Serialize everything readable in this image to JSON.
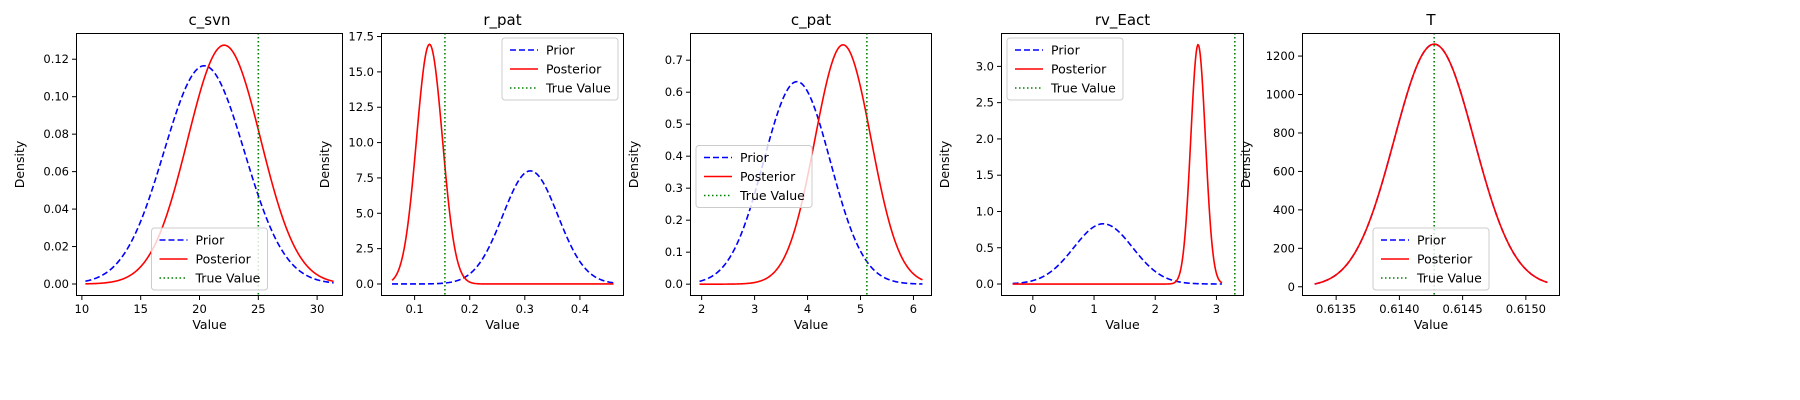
{
  "colors": {
    "prior": "#0000ff",
    "posterior": "#ff0000",
    "true_value": "#008000"
  },
  "chart_data": [
    {
      "type": "line",
      "title": "c_svn",
      "xlabel": "Value",
      "ylabel": "Density",
      "xlim": [
        9.5,
        32.2
      ],
      "ylim": [
        -0.0064,
        0.134
      ],
      "xticks": [
        10,
        15,
        20,
        25,
        30
      ],
      "xtick_labels": [
        "10",
        "15",
        "20",
        "25",
        "30"
      ],
      "yticks": [
        0.0,
        0.02,
        0.04,
        0.06,
        0.08,
        0.1,
        0.12
      ],
      "ytick_labels": [
        "0.00",
        "0.02",
        "0.04",
        "0.06",
        "0.08",
        "0.10",
        "0.12"
      ],
      "legend": "lower-center",
      "x_range": [
        10.3,
        31.4
      ],
      "series": [
        {
          "name": "Prior",
          "style": "dashed",
          "curve": {
            "shape": "gaussian",
            "mean": 20.4,
            "sd": 3.42,
            "peak": 0.1165
          }
        },
        {
          "name": "Posterior",
          "style": "solid",
          "curve": {
            "shape": "gaussian",
            "mean": 22.1,
            "sd": 3.1,
            "peak": 0.1275
          }
        }
      ],
      "true_value": 25.0,
      "true_value_label": "True Value"
    },
    {
      "type": "line",
      "title": "r_pat",
      "xlabel": "Value",
      "ylabel": "Density",
      "xlim": [
        0.039,
        0.48
      ],
      "ylim": [
        -0.85,
        17.75
      ],
      "xticks": [
        0.1,
        0.2,
        0.3,
        0.4
      ],
      "xtick_labels": [
        "0.1",
        "0.2",
        "0.3",
        "0.4"
      ],
      "yticks": [
        0.0,
        2.5,
        5.0,
        7.5,
        10.0,
        12.5,
        15.0,
        17.5
      ],
      "ytick_labels": [
        "0.0",
        "2.5",
        "5.0",
        "7.5",
        "10.0",
        "12.5",
        "15.0",
        "17.5"
      ],
      "legend": "upper-right",
      "x_range": [
        0.059,
        0.461
      ],
      "series": [
        {
          "name": "Prior",
          "style": "dashed",
          "curve": {
            "shape": "gaussian",
            "mean": 0.31,
            "sd": 0.05,
            "peak": 8.0
          }
        },
        {
          "name": "Posterior",
          "style": "solid",
          "curve": {
            "shape": "gaussian",
            "mean": 0.127,
            "sd": 0.0235,
            "peak": 16.95
          }
        }
      ],
      "true_value": 0.155,
      "true_value_label": "True Value"
    },
    {
      "type": "line",
      "title": "c_pat",
      "xlabel": "Value",
      "ylabel": "Density",
      "xlim": [
        1.78,
        6.35
      ],
      "ylim": [
        -0.037,
        0.785
      ],
      "xticks": [
        2,
        3,
        4,
        5,
        6
      ],
      "xtick_labels": [
        "2",
        "3",
        "4",
        "5",
        "6"
      ],
      "yticks": [
        0.0,
        0.1,
        0.2,
        0.3,
        0.4,
        0.5,
        0.6,
        0.7
      ],
      "ytick_labels": [
        "0.0",
        "0.1",
        "0.2",
        "0.3",
        "0.4",
        "0.5",
        "0.6",
        "0.7"
      ],
      "legend": "center-left",
      "x_range": [
        1.96,
        6.17
      ],
      "series": [
        {
          "name": "Prior",
          "style": "dashed",
          "curve": {
            "shape": "gaussian",
            "mean": 3.8,
            "sd": 0.63,
            "peak": 0.633
          }
        },
        {
          "name": "Posterior",
          "style": "solid",
          "curve": {
            "shape": "gaussian",
            "mean": 4.67,
            "sd": 0.53,
            "peak": 0.748
          }
        }
      ],
      "true_value": 5.12,
      "true_value_label": "True Value"
    },
    {
      "type": "line",
      "title": "rv_Eact",
      "xlabel": "Value",
      "ylabel": "Density",
      "xlim": [
        -0.52,
        3.45
      ],
      "ylim": [
        -0.165,
        3.46
      ],
      "xticks": [
        0,
        1,
        2,
        3
      ],
      "xtick_labels": [
        "0",
        "1",
        "2",
        "3"
      ],
      "yticks": [
        0.0,
        0.5,
        1.0,
        1.5,
        2.0,
        2.5,
        3.0
      ],
      "ytick_labels": [
        "0.0",
        "0.5",
        "1.0",
        "1.5",
        "2.0",
        "2.5",
        "3.0"
      ],
      "legend": "upper-left",
      "x_range": [
        -0.33,
        3.09
      ],
      "series": [
        {
          "name": "Prior",
          "style": "dashed",
          "curve": {
            "shape": "gaussian",
            "mean": 1.15,
            "sd": 0.48,
            "peak": 0.83
          }
        },
        {
          "name": "Posterior",
          "style": "solid",
          "curve": {
            "shape": "gaussian",
            "mean": 2.7,
            "sd": 0.12,
            "peak": 3.3
          }
        }
      ],
      "true_value": 3.3,
      "true_value_label": "True Value"
    },
    {
      "type": "line",
      "title": "T",
      "xlabel": "Value",
      "ylabel": "Density",
      "xlim": [
        0.61323,
        0.61527
      ],
      "ylim": [
        -48,
        1320
      ],
      "xticks": [
        0.6135,
        0.614,
        0.6145,
        0.615
      ],
      "xtick_labels": [
        "0.6135",
        "0.6140",
        "0.6145",
        "0.6150"
      ],
      "yticks": [
        0,
        200,
        400,
        600,
        800,
        1000,
        1200
      ],
      "ytick_labels": [
        "0",
        "200",
        "400",
        "600",
        "800",
        "1000",
        "1200"
      ],
      "legend": "lower-center",
      "x_range": [
        0.61333,
        0.61517
      ],
      "series": [
        {
          "name": "Prior",
          "style": "dashed",
          "curve": {
            "shape": "gaussian",
            "mean": 0.614275,
            "sd": 0.000316,
            "peak": 1262
          }
        },
        {
          "name": "Posterior",
          "style": "solid",
          "curve": {
            "shape": "gaussian",
            "mean": 0.614275,
            "sd": 0.000316,
            "peak": 1262
          }
        }
      ],
      "true_value": 0.614275,
      "true_value_label": "True Value"
    }
  ]
}
